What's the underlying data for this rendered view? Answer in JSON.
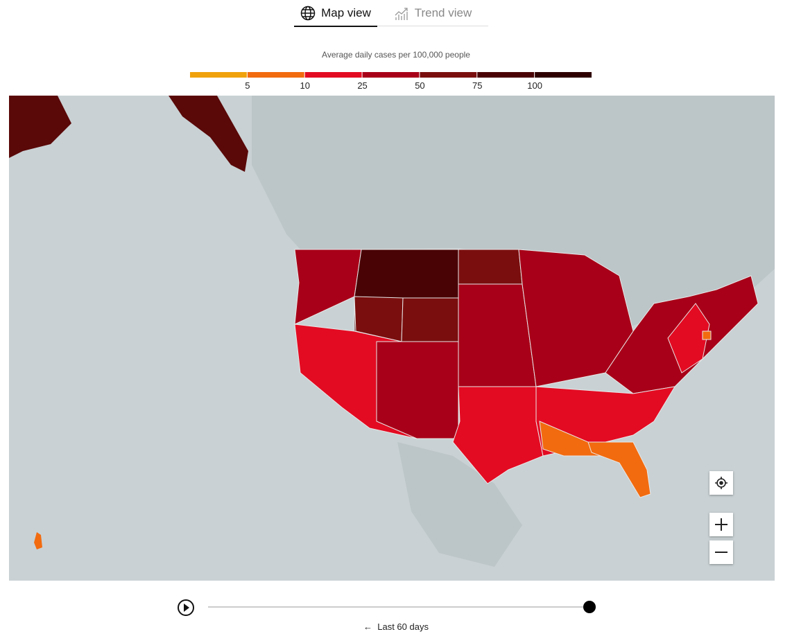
{
  "tabs": {
    "map": "Map view",
    "trend": "Trend view"
  },
  "legend": {
    "title": "Average daily cases per 100,000 people",
    "colors": [
      "#f0a20c",
      "#f26b0f",
      "#e30b22",
      "#a80018",
      "#7a0e0e",
      "#4a0305",
      "#2e0000"
    ],
    "ticks": [
      5,
      10,
      25,
      50,
      75,
      100
    ]
  },
  "timeline": {
    "label": "Last 60 days"
  }
}
